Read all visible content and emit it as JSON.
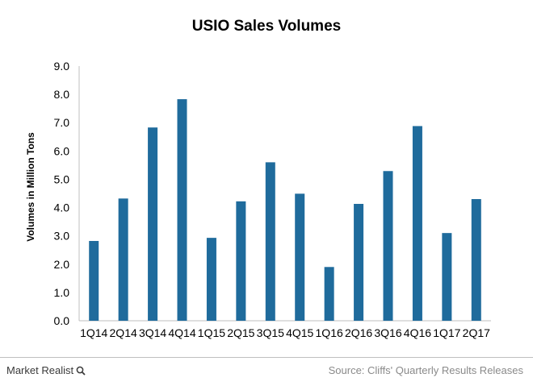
{
  "chart_data": {
    "type": "bar",
    "title": "USIO Sales Volumes",
    "xlabel": "",
    "ylabel": "Volumes in Million Tons",
    "categories": [
      "1Q14",
      "2Q14",
      "3Q14",
      "4Q14",
      "1Q15",
      "2Q15",
      "3Q15",
      "4Q15",
      "1Q16",
      "2Q16",
      "3Q16",
      "4Q16",
      "1Q17",
      "2Q17"
    ],
    "values": [
      2.82,
      4.32,
      6.83,
      7.83,
      2.93,
      4.22,
      5.6,
      4.49,
      1.9,
      4.13,
      5.29,
      6.88,
      3.1,
      4.3
    ],
    "ylim": [
      0,
      9
    ],
    "yticks": [
      "0.0",
      "1.0",
      "2.0",
      "3.0",
      "4.0",
      "5.0",
      "6.0",
      "7.0",
      "8.0",
      "9.0"
    ],
    "bar_color": "#1f6b9c",
    "grid": false,
    "legend": "none"
  },
  "footer": {
    "brand": "Market Realist",
    "source": "Source: Cliffs' Quarterly Results Releases"
  }
}
